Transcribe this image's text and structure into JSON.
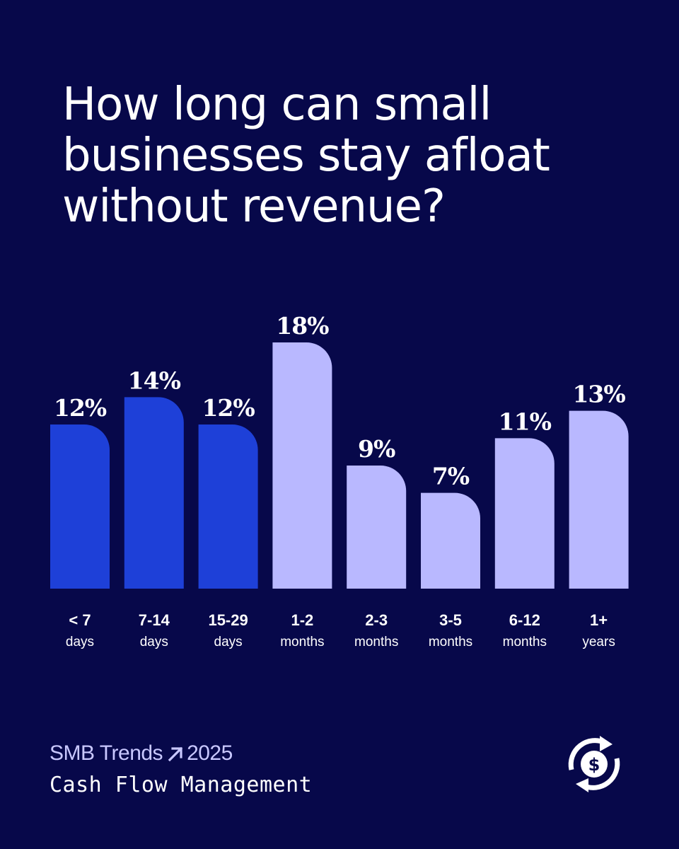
{
  "title": "How long can small businesses stay afloat without revenue?",
  "chart_data": {
    "type": "bar",
    "title": "How long can small businesses stay afloat without revenue?",
    "categories": [
      {
        "line1": "< 7",
        "line2": "days"
      },
      {
        "line1": "7-14",
        "line2": "days"
      },
      {
        "line1": "15-29",
        "line2": "days"
      },
      {
        "line1": "1-2",
        "line2": "months"
      },
      {
        "line1": "2-3",
        "line2": "months"
      },
      {
        "line1": "3-5",
        "line2": "months"
      },
      {
        "line1": "6-12",
        "line2": "months"
      },
      {
        "line1": "1+",
        "line2": "years"
      }
    ],
    "values": [
      12,
      14,
      12,
      18,
      9,
      7,
      11,
      13
    ],
    "value_labels": [
      "12%",
      "14%",
      "12%",
      "18%",
      "9%",
      "7%",
      "11%",
      "13%"
    ],
    "groups": [
      "days",
      "days",
      "days",
      "months",
      "months",
      "months",
      "months",
      "years"
    ],
    "colors": {
      "days": "#1e40d8",
      "longer": "#b9b8ff"
    },
    "unit": "%",
    "ylim": [
      0,
      18
    ],
    "xlabel": "",
    "ylabel": "",
    "grid": false,
    "legend": "none"
  },
  "footer": {
    "brand_name": "SMB Trends",
    "brand_year": "2025",
    "subtitle": "Cash Flow Management"
  },
  "icons": {
    "brand_arrow": "arrow-up-right-icon",
    "cash_cycle": "dollar-cycle-icon"
  },
  "colors": {
    "background": "#07084a",
    "accent": "#b9b8ff",
    "bar_dark": "#1e40d8"
  }
}
